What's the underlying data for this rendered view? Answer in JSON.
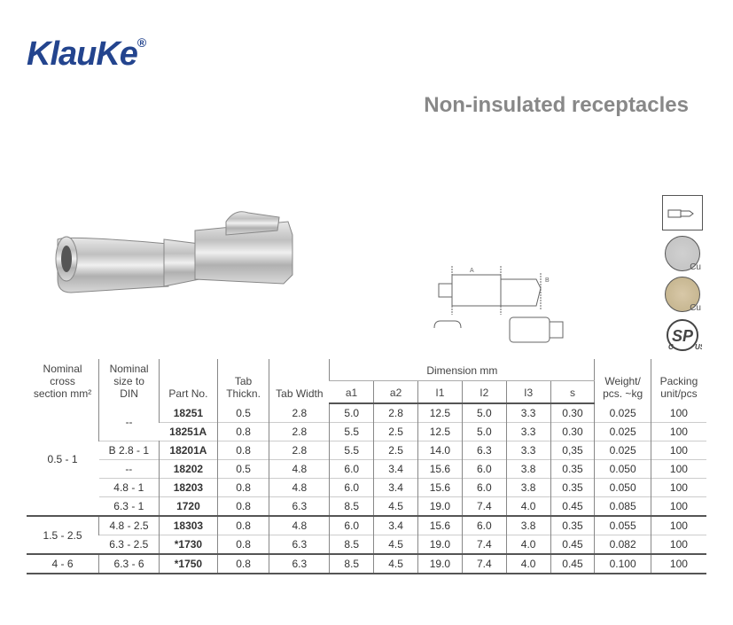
{
  "brand": "KlauKe",
  "brand_color": "#23448e",
  "reg_mark": "®",
  "title": "Non-insulated receptacles",
  "title_color": "#888888",
  "cert": {
    "cu_label": "Cu",
    "csa_label": "SP"
  },
  "table": {
    "headers": {
      "nominal_cross": "Nominal cross section mm²",
      "nominal_din": "Nominal size to DIN",
      "part_no": "Part No.",
      "tab_thickn": "Tab Thickn.",
      "tab_width": "Tab Width",
      "dimension": "Dimension mm",
      "a1": "a1",
      "a2": "a2",
      "l1": "I1",
      "l2": "I2",
      "l3": "I3",
      "s": "s",
      "weight": "Weight/ pcs. ~kg",
      "packing": "Packing unit/pcs"
    },
    "groups": [
      {
        "cross": "0.5 - 1",
        "rows": [
          {
            "din": "--",
            "din_rowspan": 2,
            "part": "18251",
            "thk": "0.5",
            "w": "2.8",
            "a1": "5.0",
            "a2": "2.8",
            "l1": "12.5",
            "l2": "5.0",
            "l3": "3.3",
            "s": "0.30",
            "wt": "0.025",
            "pk": "100"
          },
          {
            "din": null,
            "part": "18251A",
            "thk": "0.8",
            "w": "2.8",
            "a1": "5.5",
            "a2": "2.5",
            "l1": "12.5",
            "l2": "5.0",
            "l3": "3.3",
            "s": "0.30",
            "wt": "0.025",
            "pk": "100"
          },
          {
            "din": "B 2.8 - 1",
            "part": "18201A",
            "thk": "0.8",
            "w": "2.8",
            "a1": "5.5",
            "a2": "2.5",
            "l1": "14.0",
            "l2": "6.3",
            "l3": "3.3",
            "s": "0,35",
            "wt": "0.025",
            "pk": "100"
          },
          {
            "din": "--",
            "part": "18202",
            "thk": "0.5",
            "w": "4.8",
            "a1": "6.0",
            "a2": "3.4",
            "l1": "15.6",
            "l2": "6.0",
            "l3": "3.8",
            "s": "0.35",
            "wt": "0.050",
            "pk": "100"
          },
          {
            "din": "4.8 - 1",
            "part": "18203",
            "thk": "0.8",
            "w": "4.8",
            "a1": "6.0",
            "a2": "3.4",
            "l1": "15.6",
            "l2": "6.0",
            "l3": "3.8",
            "s": "0.35",
            "wt": "0.050",
            "pk": "100"
          },
          {
            "din": "6.3 - 1",
            "part": "1720",
            "thk": "0.8",
            "w": "6.3",
            "a1": "8.5",
            "a2": "4.5",
            "l1": "19.0",
            "l2": "7.4",
            "l3": "4.0",
            "s": "0.45",
            "wt": "0.085",
            "pk": "100",
            "thick": true
          }
        ]
      },
      {
        "cross": "1.5 - 2.5",
        "rows": [
          {
            "din": "4.8 - 2.5",
            "part": "18303",
            "thk": "0.8",
            "w": "4.8",
            "a1": "6.0",
            "a2": "3.4",
            "l1": "15.6",
            "l2": "6.0",
            "l3": "3.8",
            "s": "0.35",
            "wt": "0.055",
            "pk": "100"
          },
          {
            "din": "6.3 - 2.5",
            "part": "*1730",
            "thk": "0.8",
            "w": "6.3",
            "a1": "8.5",
            "a2": "4.5",
            "l1": "19.0",
            "l2": "7.4",
            "l3": "4.0",
            "s": "0.45",
            "wt": "0.082",
            "pk": "100",
            "thick": true
          }
        ]
      },
      {
        "cross": "4 - 6",
        "rows": [
          {
            "din": "6.3 - 6",
            "part": "*1750",
            "thk": "0.8",
            "w": "6.3",
            "a1": "8.5",
            "a2": "4.5",
            "l1": "19.0",
            "l2": "7.4",
            "l3": "4.0",
            "s": "0.45",
            "wt": "0.100",
            "pk": "100",
            "thick": true
          }
        ]
      }
    ]
  }
}
